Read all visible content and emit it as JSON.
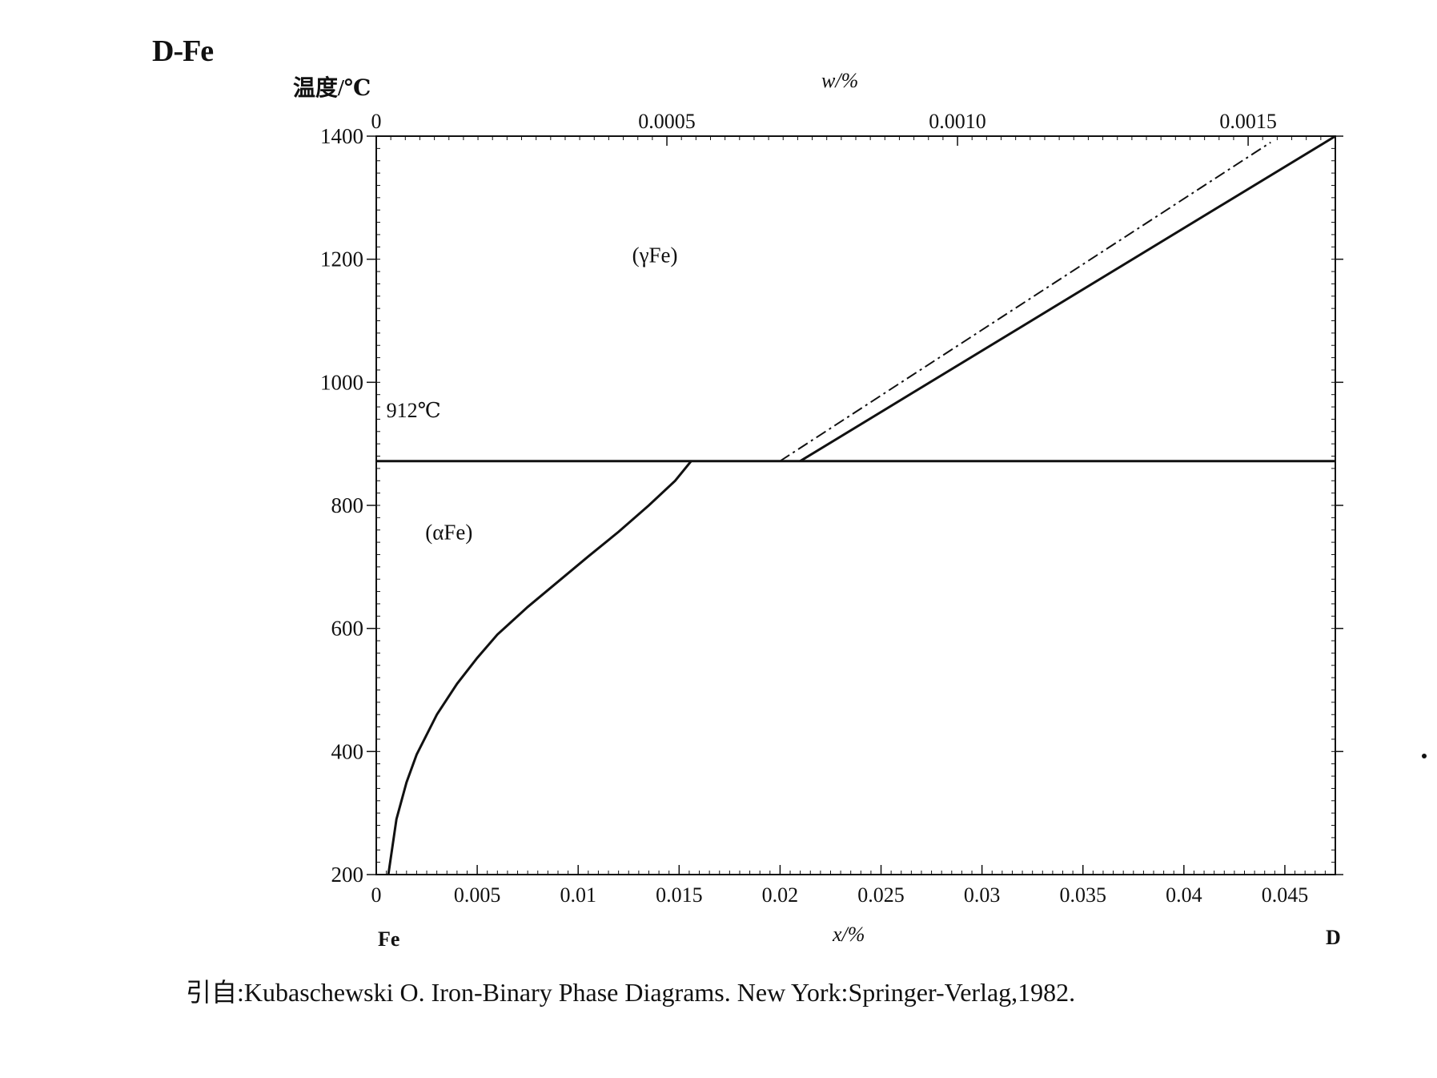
{
  "title": "D-Fe",
  "caption": "引自:Kubaschewski O.  Iron-Binary Phase Diagrams. New York:Springer-Verlag,1982.",
  "chart_data": {
    "type": "line",
    "ylabel": "温度/℃",
    "xlabel": "x/%",
    "x2label": "w/%",
    "left_component": "Fe",
    "right_component": "D",
    "ylim": [
      200,
      1400
    ],
    "xlim": [
      0,
      0.0475
    ],
    "x2lim": [
      0,
      0.00165
    ],
    "y_ticks": [
      200,
      400,
      600,
      800,
      1000,
      1200,
      1400
    ],
    "y_tick_labels": [
      "200",
      "400",
      "600",
      "800",
      "1000",
      "1200",
      "1400"
    ],
    "x_ticks": [
      0,
      0.005,
      0.01,
      0.015,
      0.02,
      0.025,
      0.03,
      0.035,
      0.04,
      0.045
    ],
    "x_tick_labels": [
      "0",
      "0.005",
      "0.01",
      "0.015",
      "0.02",
      "0.025",
      "0.03",
      "0.035",
      "0.04",
      "0.045"
    ],
    "x2_ticks": [
      0,
      0.0005,
      0.001,
      0.0015
    ],
    "x2_tick_labels": [
      "0",
      "0.0005",
      "0.0010",
      "0.0015"
    ],
    "grid": false,
    "region_labels": [
      {
        "text": "(γFe)",
        "x": 0.0138,
        "y": 1195
      },
      {
        "text": "(αFe)",
        "x": 0.0036,
        "y": 745
      }
    ],
    "annotations": [
      {
        "text": "912℃",
        "x": 0.0005,
        "y": 930
      }
    ],
    "series": [
      {
        "style": "solid",
        "x": [
          0.0006,
          0.001,
          0.0015,
          0.002,
          0.003,
          0.004,
          0.005,
          0.006,
          0.0075,
          0.009,
          0.0105,
          0.012,
          0.0135,
          0.0148,
          0.0156
        ],
        "y": [
          200,
          290,
          350,
          395,
          460,
          510,
          552,
          590,
          635,
          676,
          717,
          757,
          800,
          840,
          872
        ]
      },
      {
        "style": "solid",
        "x": [
          0,
          0.0475
        ],
        "y": [
          872,
          872
        ]
      },
      {
        "style": "solid",
        "x": [
          0.021,
          0.0475
        ],
        "y": [
          872,
          1400
        ]
      },
      {
        "style": "dashdot",
        "x": [
          0.02,
          0.0443
        ],
        "y": [
          872,
          1390
        ]
      }
    ]
  }
}
